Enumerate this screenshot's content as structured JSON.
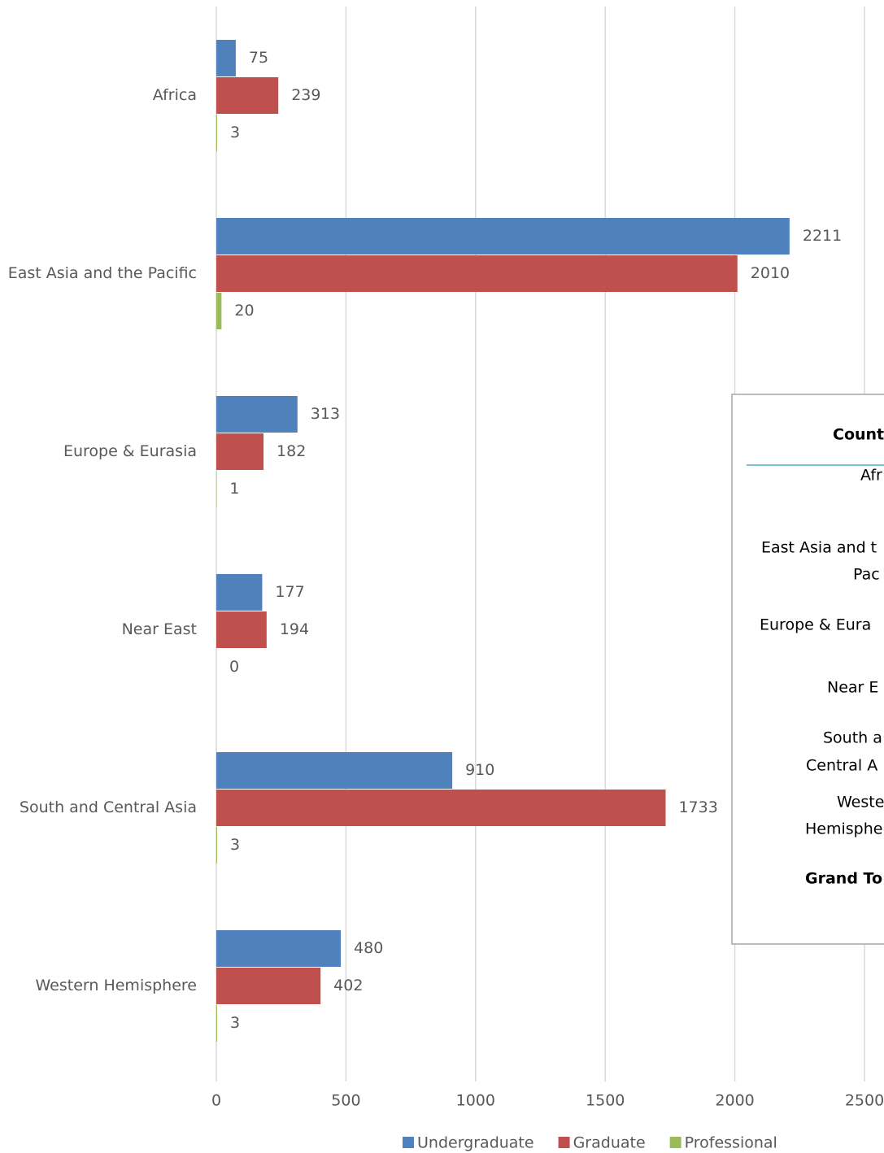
{
  "chart_data": {
    "type": "bar",
    "orientation": "horizontal",
    "categories": [
      "Africa",
      "East Asia and the Pacific",
      "Europe & Eurasia",
      "Near East",
      "South and Central Asia",
      "Western Hemisphere"
    ],
    "series": [
      {
        "name": "Undergraduate",
        "color": "#4f81bd",
        "values": [
          75,
          2211,
          313,
          177,
          910,
          480
        ]
      },
      {
        "name": "Graduate",
        "color": "#c0504d",
        "values": [
          239,
          2010,
          182,
          194,
          1733,
          402
        ]
      },
      {
        "name": "Professional",
        "color": "#9bbb59",
        "values": [
          3,
          20,
          1,
          0,
          3,
          3
        ]
      }
    ],
    "xlim": [
      0,
      2500
    ],
    "xticks": [
      0,
      500,
      1000,
      1500,
      2000,
      2500
    ],
    "grid": true,
    "legend": "bottom"
  },
  "table": {
    "title": "Count",
    "rows": [
      [
        "Afr"
      ],
      [
        "East Asia and t",
        "Pac"
      ],
      [
        "Europe & Eura"
      ],
      [
        "Near E"
      ],
      [
        "South a",
        "Central A"
      ],
      [
        "Weste",
        "Hemisphe"
      ],
      [
        "Grand To"
      ]
    ]
  }
}
